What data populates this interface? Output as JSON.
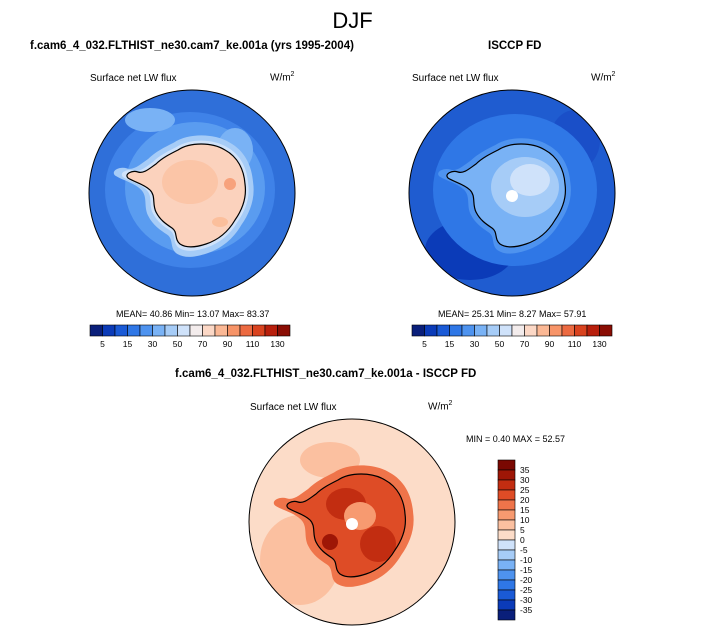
{
  "page": {
    "title": "DJF"
  },
  "colors": {
    "abs_scale": [
      "#0a1f7a",
      "#0b3bb8",
      "#1a5ad6",
      "#2f77e6",
      "#4e93ef",
      "#79b2f5",
      "#a6ccf7",
      "#cfe2fa",
      "#f3ecec",
      "#fcd8c6",
      "#fbb895",
      "#f79468",
      "#ec6a41",
      "#d9431f",
      "#b81f0c",
      "#8a0d04"
    ],
    "diff_scale": [
      "#0a1f7a",
      "#0b3bb8",
      "#1a5ad6",
      "#2f77e6",
      "#4e93ef",
      "#79b2f5",
      "#a6ccf7",
      "#cfe2fa",
      "#fcdcc8",
      "#fbc0a0",
      "#f79a70",
      "#ef744a",
      "#de4c26",
      "#c22d11",
      "#9e1606",
      "#7a0802"
    ],
    "ocean_model": "#2f6fd9",
    "ocean_obs": "#1f5cd0"
  },
  "panel1": {
    "title": "f.cam6_4_032.FLTHIST_ne30.cam7_ke.001a (yrs 1995-2004)",
    "var": "Surface net LW flux",
    "units": "W/m",
    "units_sup": "2",
    "stats": "MEAN=  40.86  Min=  13.07  Max=  83.37"
  },
  "panel2": {
    "title": "ISCCP FD",
    "var": "Surface net LW flux",
    "units": "W/m",
    "units_sup": "2",
    "stats": "MEAN=  25.31  Min=    8.27  Max=  57.91"
  },
  "panel3": {
    "title": "f.cam6_4_032.FLTHIST_ne30.cam7_ke.001a - ISCCP FD",
    "var": "Surface net LW flux",
    "units": "W/m",
    "units_sup": "2",
    "stats": "MIN =   0.40 MAX =  52.57"
  },
  "chart_data": [
    {
      "type": "heatmap",
      "title": "f.cam6_4_032.FLTHIST_ne30.cam7_ke.001a (yrs 1995-2004)",
      "projection": "south polar stereographic",
      "variable": "Surface net LW flux",
      "units": "W/m2",
      "mean": 40.86,
      "min": 13.07,
      "max": 83.37,
      "colorbar_labels": [
        "5",
        "15",
        "30",
        "50",
        "70",
        "90",
        "110",
        "130"
      ]
    },
    {
      "type": "heatmap",
      "title": "ISCCP FD",
      "projection": "south polar stereographic",
      "variable": "Surface net LW flux",
      "units": "W/m2",
      "mean": 25.31,
      "min": 8.27,
      "max": 57.91,
      "colorbar_labels": [
        "5",
        "15",
        "30",
        "50",
        "70",
        "90",
        "110",
        "130"
      ]
    },
    {
      "type": "heatmap",
      "title": "f.cam6_4_032.FLTHIST_ne30.cam7_ke.001a - ISCCP FD",
      "projection": "south polar stereographic",
      "variable": "Surface net LW flux",
      "units": "W/m2",
      "min": 0.4,
      "max": 52.57,
      "colorbar_labels": [
        "35",
        "30",
        "25",
        "20",
        "15",
        "10",
        "5",
        "0",
        "-5",
        "-10",
        "-15",
        "-20",
        "-25",
        "-30",
        "-35"
      ]
    }
  ]
}
